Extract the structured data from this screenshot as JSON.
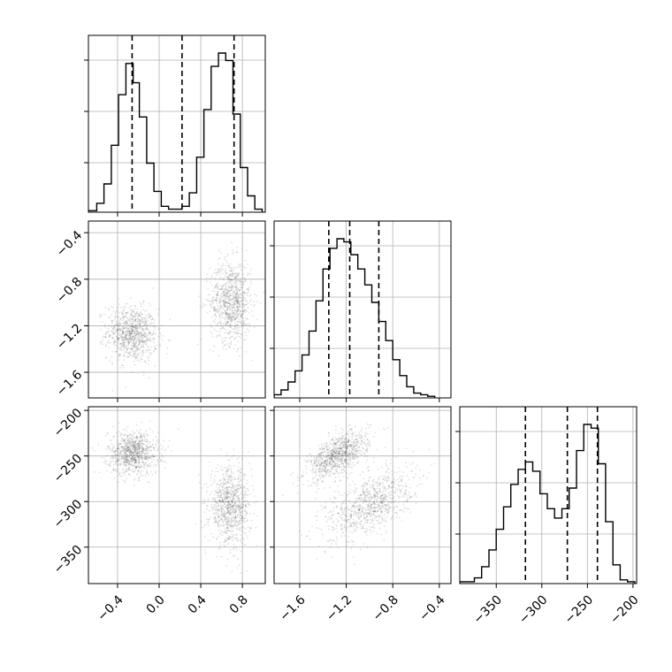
{
  "chart_data": {
    "type": "corner",
    "params": [
      {
        "range": [
          -0.68,
          1.02
        ],
        "ticks": [
          -0.4,
          0.0,
          0.4,
          0.8
        ],
        "tick_labels": [
          "−0.4",
          "0.0",
          "0.4",
          "0.8"
        ]
      },
      {
        "range": [
          -1.82,
          -0.3
        ],
        "ticks": [
          -1.6,
          -1.2,
          -0.8,
          -0.4
        ],
        "tick_labels": [
          "−1.6",
          "−1.2",
          "−0.8",
          "−0.4"
        ]
      },
      {
        "range": [
          -390,
          -196
        ],
        "ticks": [
          -350,
          -300,
          -250,
          -200
        ],
        "tick_labels": [
          "−350",
          "−300",
          "−250",
          "−200"
        ]
      }
    ],
    "hist": [
      {
        "quantiles": [
          -0.26,
          0.22,
          0.72
        ],
        "bins": [
          [
            -0.68,
            -0.6,
            0.01
          ],
          [
            -0.6,
            -0.53,
            0.06
          ],
          [
            -0.53,
            -0.46,
            0.19
          ],
          [
            -0.46,
            -0.39,
            0.45
          ],
          [
            -0.39,
            -0.32,
            0.79
          ],
          [
            -0.32,
            -0.25,
            1.0
          ],
          [
            -0.25,
            -0.19,
            0.87
          ],
          [
            -0.19,
            -0.12,
            0.64
          ],
          [
            -0.12,
            -0.05,
            0.33
          ],
          [
            -0.05,
            0.02,
            0.14
          ],
          [
            0.02,
            0.09,
            0.04
          ],
          [
            0.09,
            0.16,
            0.02
          ],
          [
            0.16,
            0.22,
            0.02
          ],
          [
            0.22,
            0.29,
            0.04
          ],
          [
            0.29,
            0.36,
            0.13
          ],
          [
            0.36,
            0.43,
            0.37
          ],
          [
            0.43,
            0.5,
            0.69
          ],
          [
            0.5,
            0.57,
            0.98
          ],
          [
            0.57,
            0.64,
            1.07
          ],
          [
            0.64,
            0.71,
            1.02
          ],
          [
            0.71,
            0.78,
            0.66
          ],
          [
            0.78,
            0.85,
            0.3
          ],
          [
            0.85,
            0.92,
            0.11
          ],
          [
            0.92,
            0.99,
            0.02
          ]
        ]
      },
      {
        "quantiles": [
          -1.35,
          -1.17,
          -0.92
        ],
        "bins": [
          [
            -1.82,
            -1.76,
            0.02
          ],
          [
            -1.76,
            -1.7,
            0.05
          ],
          [
            -1.7,
            -1.64,
            0.1
          ],
          [
            -1.64,
            -1.58,
            0.17
          ],
          [
            -1.58,
            -1.52,
            0.27
          ],
          [
            -1.52,
            -1.46,
            0.42
          ],
          [
            -1.46,
            -1.4,
            0.61
          ],
          [
            -1.4,
            -1.34,
            0.81
          ],
          [
            -1.34,
            -1.28,
            0.94
          ],
          [
            -1.28,
            -1.22,
            1.0
          ],
          [
            -1.22,
            -1.16,
            0.98
          ],
          [
            -1.16,
            -1.1,
            0.9
          ],
          [
            -1.1,
            -1.04,
            0.81
          ],
          [
            -1.04,
            -0.98,
            0.71
          ],
          [
            -0.98,
            -0.92,
            0.6
          ],
          [
            -0.92,
            -0.86,
            0.48
          ],
          [
            -0.86,
            -0.8,
            0.36
          ],
          [
            -0.8,
            -0.74,
            0.24
          ],
          [
            -0.74,
            -0.68,
            0.14
          ],
          [
            -0.68,
            -0.62,
            0.07
          ],
          [
            -0.62,
            -0.56,
            0.03
          ],
          [
            -0.56,
            -0.5,
            0.02
          ],
          [
            -0.5,
            -0.44,
            0.01
          ]
        ]
      },
      {
        "quantiles": [
          -318,
          -272,
          -239
        ],
        "bins": [
          [
            -390,
            -382,
            0.01
          ],
          [
            -382,
            -374,
            0.01
          ],
          [
            -374,
            -366,
            0.03
          ],
          [
            -366,
            -358,
            0.09
          ],
          [
            -358,
            -350,
            0.18
          ],
          [
            -350,
            -342,
            0.29
          ],
          [
            -342,
            -334,
            0.41
          ],
          [
            -334,
            -326,
            0.53
          ],
          [
            -326,
            -318,
            0.61
          ],
          [
            -318,
            -310,
            0.65
          ],
          [
            -310,
            -302,
            0.6
          ],
          [
            -302,
            -294,
            0.48
          ],
          [
            -294,
            -286,
            0.4
          ],
          [
            -286,
            -278,
            0.35
          ],
          [
            -278,
            -270,
            0.4
          ],
          [
            -270,
            -262,
            0.51
          ],
          [
            -262,
            -254,
            0.71
          ],
          [
            -254,
            -246,
            0.85
          ],
          [
            -246,
            -238,
            0.83
          ],
          [
            -238,
            -230,
            0.64
          ],
          [
            -230,
            -222,
            0.33
          ],
          [
            -222,
            -214,
            0.1
          ],
          [
            -214,
            -206,
            0.02
          ],
          [
            -206,
            -198,
            0.01
          ]
        ]
      }
    ],
    "pairs": [
      {
        "row": 1,
        "col": 0,
        "blobs": [
          {
            "cx": -0.26,
            "cy": -1.27,
            "sx": 0.11,
            "sy": 0.11,
            "rho": -0.1
          },
          {
            "cx": 0.69,
            "cy": -0.99,
            "sx": 0.09,
            "sy": 0.16,
            "rho": 0.0
          }
        ]
      },
      {
        "row": 2,
        "col": 0,
        "blobs": [
          {
            "cx": -0.25,
            "cy": -247,
            "sx": 0.11,
            "sy": 11,
            "rho": 0.0
          },
          {
            "cx": 0.68,
            "cy": -305,
            "sx": 0.09,
            "sy": 19,
            "rho": 0.0
          }
        ]
      },
      {
        "row": 2,
        "col": 1,
        "blobs": [
          {
            "cx": -1.27,
            "cy": -249,
            "sx": 0.12,
            "sy": 12,
            "rho": 0.6
          },
          {
            "cx": -1.0,
            "cy": -303,
            "sx": 0.17,
            "sy": 18,
            "rho": 0.55
          }
        ]
      }
    ]
  }
}
